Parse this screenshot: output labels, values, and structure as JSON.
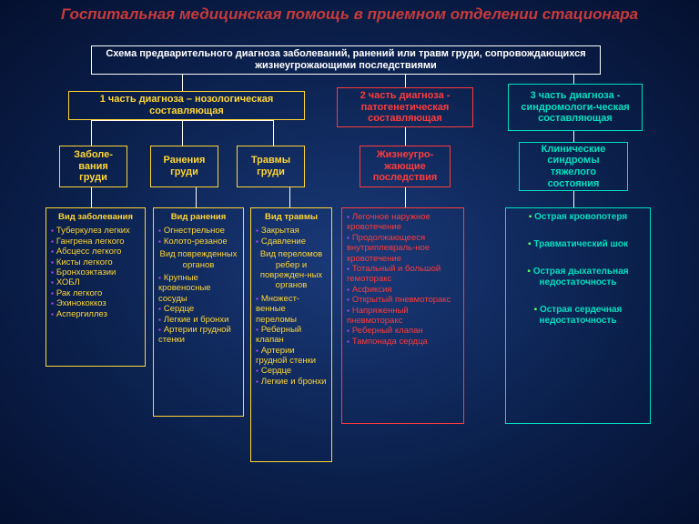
{
  "colors": {
    "bg_box": "#0e2a5e",
    "border_white": "#ffffff",
    "text_white": "#ffffff",
    "text_yellow": "#ffd633",
    "text_red": "#ff3b3b",
    "text_teal": "#00e0c0",
    "title_red": "#c83a3a",
    "bullet_purple": "#b84aff",
    "bullet_green": "#5aff5a"
  },
  "title": "Госпитальная медицинская помощь в приемном отделении стационара",
  "title_fontsize": 17,
  "root": "Схема предварительного диагноза заболеваний, ранений или травм груди, сопровождающихся жизнеугрожающими последствиями",
  "part1": "1 часть диагноза – нозологическая составляющая",
  "part2": "2 часть диагноза - патогенетическая составляющая",
  "part3": "3 часть диагноза - синдромологи-ческая составляющая",
  "box_disease": "Заболе-вания груди",
  "box_wound": "Ранения груди",
  "box_trauma": "Травмы груди",
  "box_lifethreat": "Жизнеугро-жающие последствия",
  "box_syndrome": "Клинические синдромы тяжелого состояния",
  "leaf_disease": {
    "heading": "Вид заболевания",
    "items": [
      "Туберкулез легких",
      "Гангрена легкого",
      "Абсцесс легкого",
      "Кисты легкого",
      "Бронхоэктазии",
      "ХОБЛ",
      "Рак легкого",
      "Эхинококкоз",
      "Аспергиллез"
    ]
  },
  "leaf_wound": {
    "heading": "Вид ранения",
    "items1": [
      "Огнестрельное",
      "Колото-резаное"
    ],
    "sub": "Вид поврежденных органов",
    "items2": [
      "Крупные кровеносные сосуды",
      "Сердце",
      "Легкие и бронхи",
      "Артерии грудной стенки"
    ]
  },
  "leaf_trauma": {
    "heading": "Вид травмы",
    "items1": [
      "Закрытая",
      "Сдавление"
    ],
    "sub": "Вид переломов ребер и поврежден-ных органов",
    "items2": [
      "Множест-венные переломы",
      "Реберный клапан",
      "Артерии грудной стенки",
      "Сердце",
      "Легкие и бронхи"
    ]
  },
  "leaf_lifethreat": {
    "items": [
      "Легочное наружное кровотечение",
      "Продолжающееся внутриплевраль-ное кровотечение",
      "Тотальный и большой гемоторакс",
      "Асфиксия",
      "Открытый пневмоторакс",
      "Напряженный пневмоторакс",
      "Реберный клапан",
      "Тампонада сердца"
    ]
  },
  "leaf_syndrome": {
    "items": [
      "Острая кровопотеря",
      "Травматический шок",
      "Острая дыхательная недостаточность",
      "Острая сердечная недостаточность"
    ]
  }
}
